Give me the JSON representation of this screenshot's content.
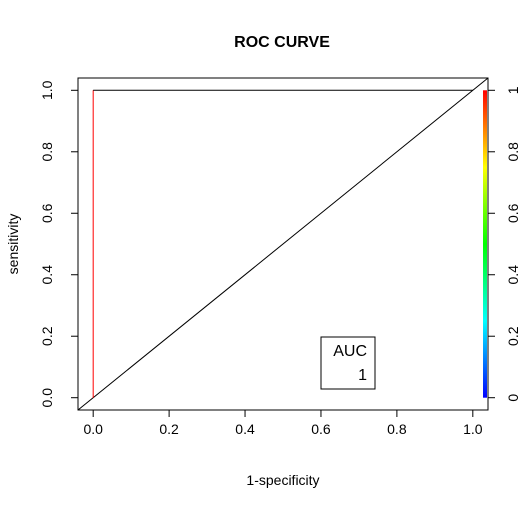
{
  "chart_data": {
    "type": "line",
    "title": "ROC CURVE",
    "xlabel": "1-specificity",
    "ylabel": "sensitivity",
    "xlim": [
      -0.04,
      1.04
    ],
    "ylim": [
      -0.04,
      1.04
    ],
    "x_ticks": [
      "0.0",
      "0.2",
      "0.4",
      "0.6",
      "0.8",
      "1.0"
    ],
    "y_ticks": [
      "0.0",
      "0.2",
      "0.4",
      "0.6",
      "0.8",
      "1.0"
    ],
    "series": [
      {
        "x": [
          0,
          0,
          1
        ],
        "y": [
          0,
          1,
          1
        ],
        "color_segments": [
          "#ff0000",
          "#000000"
        ]
      }
    ],
    "diagonal_reference": true,
    "colorbar": {
      "ticks": [
        "0",
        "0.2",
        "0.4",
        "0.6",
        "0.8",
        "1"
      ],
      "colors": [
        "#0000ff",
        "#00ffff",
        "#00ff00",
        "#ffff00",
        "#ff0000"
      ]
    },
    "annotation": {
      "label": "AUC",
      "value": "1"
    },
    "grid": false
  }
}
